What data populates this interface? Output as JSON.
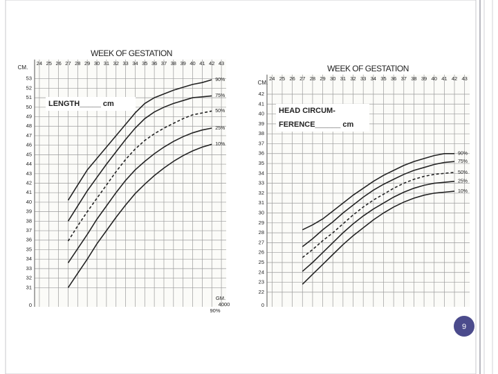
{
  "chart_data": [
    {
      "type": "line",
      "title": "WEEK OF GESTATION",
      "y_label": "CM.",
      "annotation": [
        "LENGTH_____ cm"
      ],
      "bottom_tick_label": "0",
      "weight_labels": [
        "GM.",
        "4000",
        "90%"
      ],
      "xlim": [
        23.5,
        43.5
      ],
      "xticks": [
        24,
        25,
        26,
        27,
        28,
        29,
        30,
        31,
        32,
        33,
        34,
        35,
        36,
        37,
        38,
        39,
        40,
        41,
        42,
        43
      ],
      "ylim": [
        30,
        54
      ],
      "yticks": [
        31,
        32,
        33,
        34,
        35,
        36,
        37,
        38,
        39,
        40,
        41,
        42,
        43,
        44,
        45,
        46,
        47,
        48,
        49,
        50,
        51,
        52,
        53
      ],
      "grid": true,
      "x": [
        27,
        28,
        29,
        30,
        31,
        32,
        33,
        34,
        35,
        36,
        37,
        38,
        39,
        40,
        41,
        42
      ],
      "series": [
        {
          "name": "90%",
          "color": "#222222",
          "dashed": false,
          "values": [
            40.2,
            41.8,
            43.4,
            44.6,
            45.8,
            47,
            48.2,
            49.4,
            50.4,
            51,
            51.4,
            51.8,
            52.1,
            52.4,
            52.6,
            52.9
          ]
        },
        {
          "name": "75%",
          "color": "#222222",
          "dashed": false,
          "values": [
            38,
            39.6,
            41.2,
            42.6,
            44,
            45.3,
            46.6,
            47.8,
            48.8,
            49.5,
            50,
            50.4,
            50.7,
            51,
            51.1,
            51.2
          ]
        },
        {
          "name": "50%",
          "color": "#222222",
          "dashed": true,
          "values": [
            35.9,
            37.5,
            39,
            40.4,
            41.8,
            43.2,
            44.5,
            45.6,
            46.5,
            47.2,
            47.8,
            48.3,
            48.8,
            49.2,
            49.4,
            49.6
          ]
        },
        {
          "name": "25%",
          "color": "#222222",
          "dashed": false,
          "values": [
            33.6,
            35.1,
            36.6,
            38.2,
            39.6,
            41,
            42.3,
            43.4,
            44.3,
            45.1,
            45.8,
            46.4,
            46.9,
            47.3,
            47.6,
            47.8
          ]
        },
        {
          "name": "10%",
          "color": "#222222",
          "dashed": false,
          "values": [
            31,
            32.5,
            34,
            35.6,
            37,
            38.4,
            39.7,
            40.9,
            41.9,
            42.8,
            43.6,
            44.3,
            44.9,
            45.4,
            45.8,
            46.1
          ]
        }
      ]
    },
    {
      "type": "line",
      "title": "WEEK OF GESTATION",
      "y_label": "CM.",
      "annotation": [
        "HEAD CIRCUM-",
        "FERENCE______ cm"
      ],
      "bottom_tick_label": "0",
      "xlim": [
        23.5,
        43.5
      ],
      "xticks": [
        24,
        25,
        26,
        27,
        28,
        29,
        30,
        31,
        32,
        33,
        34,
        35,
        36,
        37,
        38,
        39,
        40,
        41,
        42,
        43
      ],
      "ylim": [
        21.5,
        43
      ],
      "yticks": [
        22,
        23,
        24,
        25,
        26,
        27,
        28,
        29,
        30,
        31,
        32,
        33,
        34,
        35,
        36,
        37,
        38,
        39,
        40,
        41,
        42
      ],
      "grid": true,
      "x": [
        27,
        28,
        29,
        30,
        31,
        32,
        33,
        34,
        35,
        36,
        37,
        38,
        39,
        40,
        41,
        42
      ],
      "series": [
        {
          "name": "90%",
          "color": "#222222",
          "dashed": false,
          "values": [
            28.3,
            28.8,
            29.4,
            30.2,
            31,
            31.8,
            32.5,
            33.2,
            33.8,
            34.3,
            34.8,
            35.2,
            35.5,
            35.8,
            36,
            36
          ]
        },
        {
          "name": "75%",
          "color": "#222222",
          "dashed": false,
          "values": [
            26.6,
            27.4,
            28.3,
            29.1,
            30,
            30.8,
            31.6,
            32.3,
            32.9,
            33.4,
            33.9,
            34.3,
            34.6,
            34.9,
            35.1,
            35.2
          ]
        },
        {
          "name": "50%",
          "color": "#222222",
          "dashed": true,
          "values": [
            25.5,
            26.3,
            27.2,
            28,
            28.9,
            29.8,
            30.6,
            31.3,
            31.9,
            32.5,
            33,
            33.4,
            33.7,
            33.9,
            34,
            34.1
          ]
        },
        {
          "name": "25%",
          "color": "#222222",
          "dashed": false,
          "values": [
            24.1,
            25,
            26,
            27,
            28,
            28.9,
            29.7,
            30.4,
            31,
            31.6,
            32.1,
            32.5,
            32.8,
            33,
            33.1,
            33.2
          ]
        },
        {
          "name": "10%",
          "color": "#222222",
          "dashed": false,
          "values": [
            22.8,
            23.8,
            24.8,
            25.8,
            26.8,
            27.7,
            28.5,
            29.3,
            30,
            30.6,
            31.1,
            31.5,
            31.8,
            32,
            32.1,
            32.2
          ]
        }
      ]
    }
  ],
  "page_number": "9"
}
